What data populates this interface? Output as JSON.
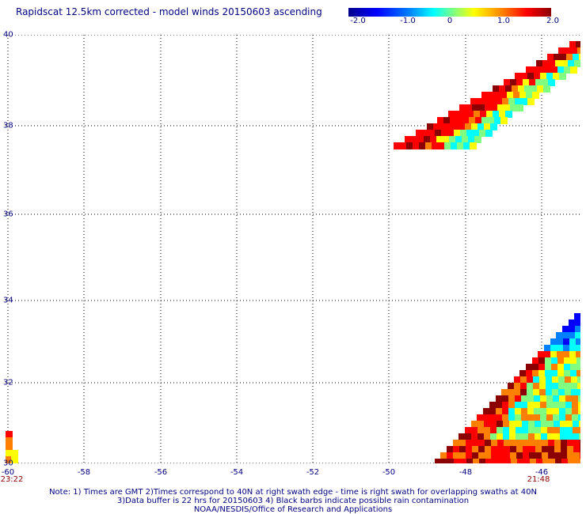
{
  "title": "Rapidscat 12.5km corrected - model winds 20150603 ascending",
  "colorbar": {
    "labels": [
      "-2.0",
      "-1.0",
      "0",
      "1.0",
      "2.0"
    ],
    "colors": [
      "#00008b",
      "#0000ff",
      "#0080ff",
      "#00ffff",
      "#80ff80",
      "#ffff00",
      "#ff8000",
      "#ff0000",
      "#8b0000"
    ]
  },
  "map": {
    "lat_labels": [
      "40",
      "38",
      "36",
      "34",
      "32",
      "30"
    ],
    "lon_labels": [
      "-60",
      "-58",
      "-56",
      "-54",
      "-52",
      "-50",
      "-48",
      "-46"
    ],
    "time_left": "23:22",
    "time_right": "21:48",
    "gridline_style": "dotted"
  },
  "notes": [
    "Note: 1) Times are GMT 2)Times correspond to 40N at right swath edge - time is right swath for overlapping swaths at 40N",
    "3)Data buffer is 22 hrs for 20150603 4) Black barbs indicate possible rain contamination",
    "NOAA/NESDIS/Office of Research and Applications"
  ]
}
